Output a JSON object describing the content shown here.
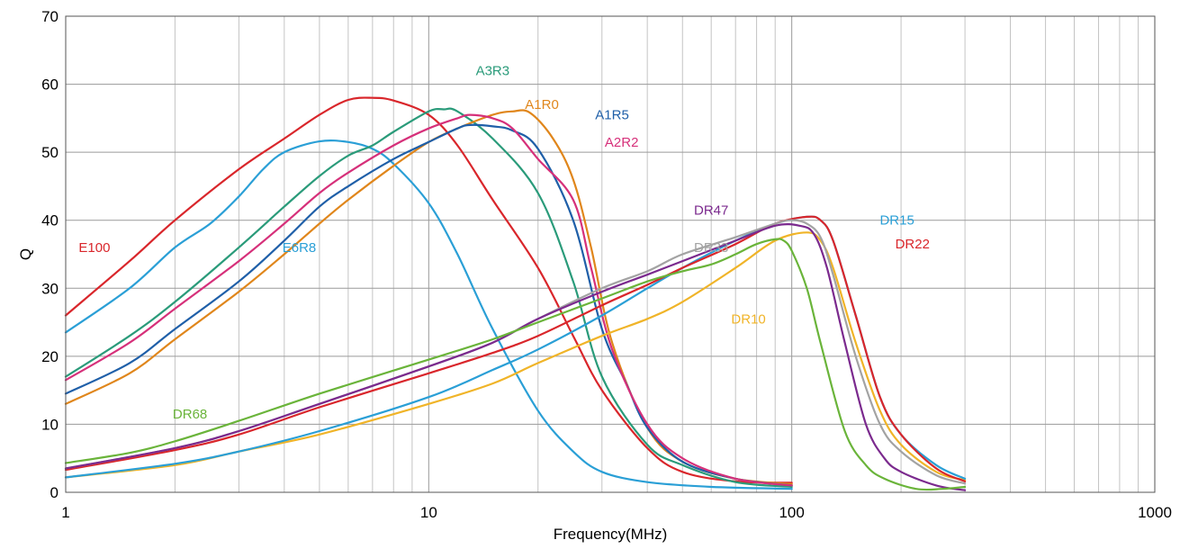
{
  "chart_data": {
    "type": "line",
    "title": "",
    "xlabel": "Frequency(MHz)",
    "ylabel": "Q",
    "xscale": "log",
    "xlim": [
      1,
      1000
    ],
    "ylim": [
      0,
      70
    ],
    "grid": true,
    "x_ticks": [
      "1",
      "10",
      "100",
      "1000"
    ],
    "y_ticks": [
      "0",
      "10",
      "20",
      "30",
      "40",
      "50",
      "60",
      "70"
    ],
    "series": [
      {
        "name": "E100",
        "color": "#d9262b",
        "label_at": [
          1.2,
          36
        ],
        "points": [
          [
            1,
            26
          ],
          [
            1.5,
            34
          ],
          [
            2,
            40
          ],
          [
            3,
            47.5
          ],
          [
            4,
            52
          ],
          [
            5,
            55.5
          ],
          [
            6,
            57.7
          ],
          [
            7,
            58
          ],
          [
            8,
            57.6
          ],
          [
            10,
            55.5
          ],
          [
            12,
            51
          ],
          [
            15,
            43
          ],
          [
            20,
            33
          ],
          [
            25,
            23
          ],
          [
            30,
            15
          ],
          [
            40,
            6.5
          ],
          [
            50,
            3
          ],
          [
            70,
            1.6
          ],
          [
            100,
            1.4
          ]
        ]
      },
      {
        "name": "E6R8",
        "color": "#2a9fd6",
        "label_at": [
          4.4,
          36
        ],
        "points": [
          [
            1,
            23.5
          ],
          [
            1.5,
            30
          ],
          [
            2,
            36
          ],
          [
            2.5,
            39.5
          ],
          [
            3,
            43.5
          ],
          [
            3.5,
            47.5
          ],
          [
            4,
            50
          ],
          [
            5,
            51.6
          ],
          [
            6,
            51.5
          ],
          [
            7,
            50.5
          ],
          [
            8,
            48.3
          ],
          [
            10,
            42.5
          ],
          [
            12,
            35
          ],
          [
            15,
            24
          ],
          [
            20,
            12
          ],
          [
            25,
            6
          ],
          [
            30,
            3
          ],
          [
            40,
            1.5
          ],
          [
            60,
            0.8
          ],
          [
            100,
            0.5
          ]
        ]
      },
      {
        "name": "A3R3",
        "color": "#2a9b7a",
        "label_at": [
          15,
          62
        ],
        "points": [
          [
            1,
            17
          ],
          [
            1.5,
            23
          ],
          [
            2,
            28
          ],
          [
            3,
            36
          ],
          [
            4,
            42
          ],
          [
            5,
            46.5
          ],
          [
            6,
            49.5
          ],
          [
            7,
            51
          ],
          [
            8,
            53
          ],
          [
            10,
            56
          ],
          [
            11,
            56.3
          ],
          [
            12,
            56
          ],
          [
            15,
            52
          ],
          [
            20,
            44
          ],
          [
            25,
            31
          ],
          [
            30,
            17
          ],
          [
            40,
            7
          ],
          [
            50,
            4
          ],
          [
            70,
            1.5
          ],
          [
            100,
            0.8
          ]
        ]
      },
      {
        "name": "A1R0",
        "color": "#e0861b",
        "label_at": [
          20.5,
          57
        ],
        "points": [
          [
            1,
            13
          ],
          [
            1.5,
            17.5
          ],
          [
            2,
            22.5
          ],
          [
            3,
            29.5
          ],
          [
            4,
            35
          ],
          [
            5,
            39.5
          ],
          [
            6,
            43
          ],
          [
            8,
            48
          ],
          [
            10,
            51.5
          ],
          [
            12,
            53.5
          ],
          [
            15,
            55.5
          ],
          [
            17,
            56
          ],
          [
            19,
            55.8
          ],
          [
            22,
            52
          ],
          [
            25,
            46
          ],
          [
            28,
            36
          ],
          [
            32,
            22
          ],
          [
            40,
            9.5
          ],
          [
            50,
            4.5
          ],
          [
            70,
            2
          ],
          [
            100,
            1.2
          ]
        ]
      },
      {
        "name": "A1R5",
        "color": "#1f5fa8",
        "label_at": [
          32,
          55.5
        ],
        "points": [
          [
            1,
            14.5
          ],
          [
            1.5,
            19
          ],
          [
            2,
            24
          ],
          [
            3,
            31
          ],
          [
            4,
            37
          ],
          [
            5,
            42
          ],
          [
            6,
            45
          ],
          [
            8,
            49
          ],
          [
            10,
            51.5
          ],
          [
            12,
            53.5
          ],
          [
            13,
            54
          ],
          [
            15,
            53.8
          ],
          [
            17,
            53.2
          ],
          [
            20,
            50.5
          ],
          [
            25,
            40
          ],
          [
            30,
            24
          ],
          [
            35,
            16
          ],
          [
            40,
            9.5
          ],
          [
            50,
            4.5
          ],
          [
            70,
            2
          ],
          [
            100,
            1
          ]
        ]
      },
      {
        "name": "A2R2",
        "color": "#d6307a",
        "label_at": [
          34,
          51.5
        ],
        "points": [
          [
            1,
            16.5
          ],
          [
            1.5,
            22
          ],
          [
            2,
            27
          ],
          [
            3,
            34
          ],
          [
            4,
            39.5
          ],
          [
            5,
            44
          ],
          [
            6,
            47
          ],
          [
            8,
            51
          ],
          [
            10,
            53.5
          ],
          [
            12,
            55
          ],
          [
            13,
            55.5
          ],
          [
            15,
            55
          ],
          [
            17,
            53.5
          ],
          [
            20,
            49
          ],
          [
            25,
            43
          ],
          [
            28,
            33
          ],
          [
            32,
            21
          ],
          [
            40,
            10
          ],
          [
            50,
            5
          ],
          [
            70,
            2
          ],
          [
            100,
            1
          ]
        ]
      },
      {
        "name": "DR10",
        "color": "#f0b428",
        "label_at": [
          76,
          25.5
        ],
        "points": [
          [
            1,
            2.2
          ],
          [
            2,
            4
          ],
          [
            3,
            6
          ],
          [
            5,
            8.5
          ],
          [
            10,
            13
          ],
          [
            15,
            16
          ],
          [
            20,
            19
          ],
          [
            30,
            23
          ],
          [
            40,
            25.5
          ],
          [
            50,
            28
          ],
          [
            70,
            33
          ],
          [
            90,
            37
          ],
          [
            110,
            38.2
          ],
          [
            120,
            37
          ],
          [
            130,
            33
          ],
          [
            150,
            22
          ],
          [
            175,
            12
          ],
          [
            200,
            7
          ],
          [
            250,
            3
          ],
          [
            300,
            1.8
          ]
        ]
      },
      {
        "name": "DR15",
        "color": "#2a9fd6",
        "label_at": [
          195,
          40
        ],
        "points": [
          [
            1,
            2.2
          ],
          [
            2,
            4.2
          ],
          [
            3,
            6
          ],
          [
            5,
            9
          ],
          [
            10,
            14
          ],
          [
            15,
            18
          ],
          [
            20,
            21
          ],
          [
            30,
            26
          ],
          [
            40,
            30
          ],
          [
            50,
            33
          ],
          [
            70,
            37
          ],
          [
            90,
            39.5
          ],
          [
            110,
            40.5
          ],
          [
            120,
            40
          ],
          [
            130,
            37
          ],
          [
            150,
            26
          ],
          [
            175,
            14
          ],
          [
            200,
            8.5
          ],
          [
            250,
            4
          ],
          [
            300,
            2
          ]
        ]
      },
      {
        "name": "DR22",
        "color": "#d9262b",
        "label_at": [
          215,
          36.5
        ],
        "points": [
          [
            1,
            3.3
          ],
          [
            2,
            6.2
          ],
          [
            3,
            8.5
          ],
          [
            5,
            12.5
          ],
          [
            10,
            17.5
          ],
          [
            15,
            20.5
          ],
          [
            20,
            23
          ],
          [
            30,
            27.5
          ],
          [
            40,
            30.5
          ],
          [
            50,
            33
          ],
          [
            70,
            36.5
          ],
          [
            90,
            39.5
          ],
          [
            110,
            40.5
          ],
          [
            120,
            40
          ],
          [
            130,
            37
          ],
          [
            150,
            26
          ],
          [
            175,
            14
          ],
          [
            200,
            8.5
          ],
          [
            250,
            3.5
          ],
          [
            300,
            1.6
          ]
        ]
      },
      {
        "name": "DR33",
        "color": "#a3a3a3",
        "label_at": [
          60,
          36
        ],
        "points": [
          [
            1,
            3.5
          ],
          [
            2,
            6.5
          ],
          [
            3,
            9
          ],
          [
            5,
            13
          ],
          [
            10,
            18.5
          ],
          [
            15,
            22
          ],
          [
            20,
            25.5
          ],
          [
            30,
            30
          ],
          [
            40,
            32.5
          ],
          [
            50,
            35
          ],
          [
            70,
            37.5
          ],
          [
            90,
            39.5
          ],
          [
            100,
            40
          ],
          [
            110,
            39.5
          ],
          [
            120,
            37.5
          ],
          [
            130,
            32
          ],
          [
            150,
            20
          ],
          [
            175,
            10
          ],
          [
            200,
            6
          ],
          [
            250,
            2.5
          ],
          [
            300,
            1.3
          ]
        ]
      },
      {
        "name": "DR47",
        "color": "#7b2a8e",
        "label_at": [
          60,
          41.5
        ],
        "points": [
          [
            1,
            3.5
          ],
          [
            2,
            6.5
          ],
          [
            3,
            9
          ],
          [
            5,
            13
          ],
          [
            10,
            18.5
          ],
          [
            15,
            22
          ],
          [
            20,
            25.5
          ],
          [
            30,
            29.5
          ],
          [
            40,
            32
          ],
          [
            50,
            34
          ],
          [
            70,
            37
          ],
          [
            90,
            39.2
          ],
          [
            105,
            39.2
          ],
          [
            115,
            38
          ],
          [
            125,
            33
          ],
          [
            140,
            22
          ],
          [
            160,
            10
          ],
          [
            180,
            5
          ],
          [
            200,
            3
          ],
          [
            250,
            1
          ],
          [
            300,
            0.3
          ]
        ]
      },
      {
        "name": "DR68",
        "color": "#6ab43a",
        "label_at": [
          2.2,
          11.5
        ],
        "points": [
          [
            1,
            4.3
          ],
          [
            1.5,
            5.8
          ],
          [
            2,
            7.5
          ],
          [
            3,
            10.5
          ],
          [
            5,
            14.5
          ],
          [
            10,
            19.5
          ],
          [
            15,
            22.5
          ],
          [
            20,
            25
          ],
          [
            30,
            28.5
          ],
          [
            40,
            31
          ],
          [
            50,
            32.5
          ],
          [
            60,
            33.5
          ],
          [
            70,
            35
          ],
          [
            80,
            36.5
          ],
          [
            90,
            37.2
          ],
          [
            95,
            37
          ],
          [
            100,
            35.5
          ],
          [
            110,
            30
          ],
          [
            120,
            22
          ],
          [
            140,
            9
          ],
          [
            160,
            4
          ],
          [
            180,
            2
          ],
          [
            220,
            0.5
          ],
          [
            260,
            0.5
          ],
          [
            300,
            0.8
          ]
        ]
      }
    ]
  }
}
